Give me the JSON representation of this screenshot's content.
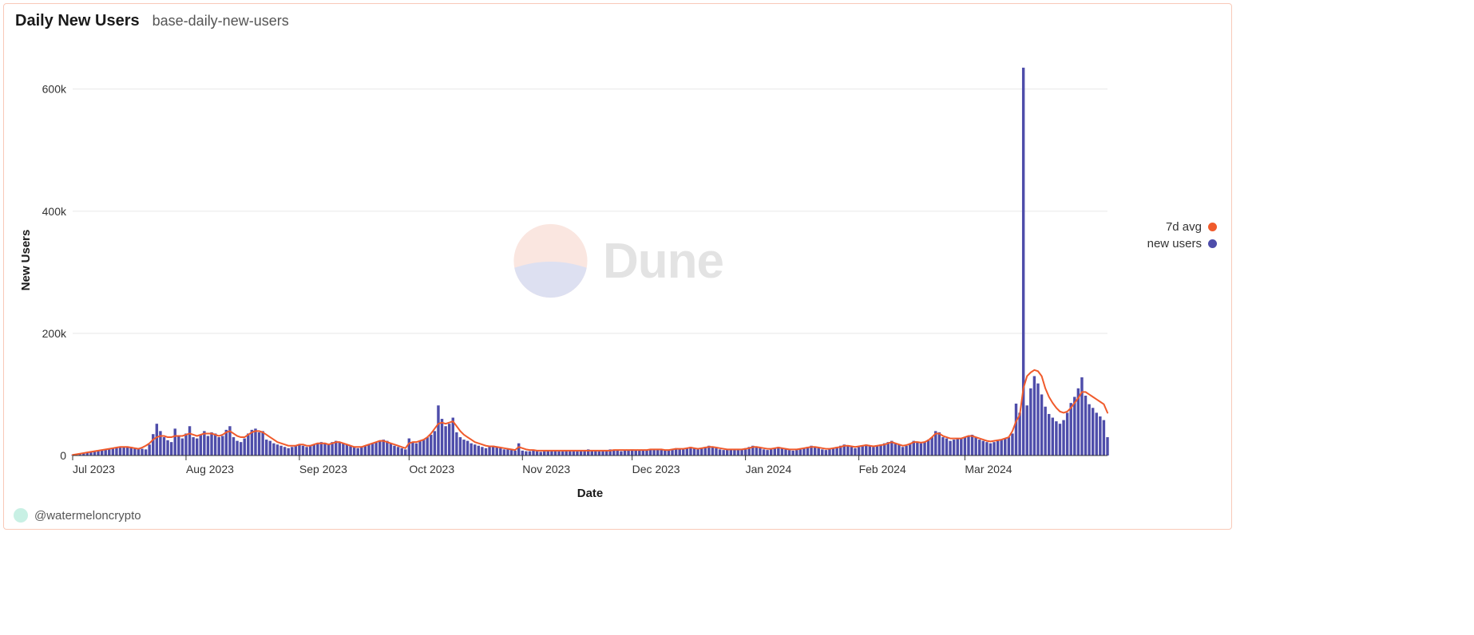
{
  "header": {
    "title": "Daily New Users",
    "subtitle": "base-daily-new-users"
  },
  "footer": {
    "author": "@watermeloncrypto",
    "avatar_color": "#c8f0e4"
  },
  "watermark": {
    "text": "Dune",
    "circle_top_color": "#f6c9bb",
    "circle_bottom_color": "#b6bbe2",
    "text_color": "#c3c3c3"
  },
  "legend": {
    "items": [
      {
        "label": "7d avg",
        "color": "#f05b2c"
      },
      {
        "label": "new users",
        "color": "#4e4daa"
      }
    ]
  },
  "chart": {
    "type": "bar+line",
    "background_color": "#ffffff",
    "grid_color": "#e8e8e8",
    "axis_color": "#333333",
    "bar_color": "#4e4daa",
    "line_color": "#f05b2c",
    "line_width": 2,
    "xlabel": "Date",
    "ylabel": "New Users",
    "ylim": [
      0,
      640000
    ],
    "yticks": [
      0,
      200000,
      400000,
      600000
    ],
    "ytick_labels": [
      "0",
      "200k",
      "400k",
      "600k"
    ],
    "xtick_labels": [
      "Jul 2023",
      "Aug 2023",
      "Sep 2023",
      "Oct 2023",
      "Nov 2023",
      "Dec 2023",
      "Jan 2024",
      "Feb 2024",
      "Mar 2024"
    ],
    "xtick_indices": [
      0,
      31,
      62,
      92,
      123,
      153,
      184,
      215,
      244
    ],
    "label_fontsize": 15,
    "tick_fontsize": 14,
    "bars": [
      1000,
      2000,
      3000,
      4000,
      5000,
      6000,
      7000,
      8000,
      9000,
      10000,
      11000,
      12000,
      13000,
      14000,
      15000,
      15000,
      14000,
      13000,
      12000,
      11000,
      10000,
      18000,
      35000,
      52000,
      40000,
      30000,
      25000,
      22000,
      44000,
      32000,
      28000,
      36000,
      48000,
      30000,
      28000,
      34000,
      40000,
      32000,
      38000,
      36000,
      30000,
      32000,
      42000,
      48000,
      30000,
      24000,
      22000,
      28000,
      36000,
      42000,
      44000,
      38000,
      40000,
      26000,
      24000,
      20000,
      18000,
      16000,
      14000,
      12000,
      14000,
      16000,
      18000,
      16000,
      14000,
      16000,
      18000,
      20000,
      22000,
      20000,
      18000,
      22000,
      24000,
      22000,
      20000,
      18000,
      16000,
      14000,
      12000,
      14000,
      16000,
      18000,
      20000,
      22000,
      24000,
      26000,
      24000,
      20000,
      16000,
      14000,
      12000,
      10000,
      28000,
      22000,
      20000,
      24000,
      26000,
      30000,
      34000,
      40000,
      82000,
      60000,
      48000,
      52000,
      62000,
      38000,
      30000,
      26000,
      24000,
      20000,
      18000,
      16000,
      14000,
      12000,
      14000,
      16000,
      14000,
      12000,
      10000,
      10000,
      9000,
      8000,
      20000,
      8000,
      7000,
      7000,
      8000,
      7000,
      6000,
      7000,
      8000,
      9000,
      8000,
      7000,
      7000,
      8000,
      9000,
      8000,
      7000,
      8000,
      9000,
      10000,
      9000,
      8000,
      7000,
      8000,
      9000,
      10000,
      9000,
      8000,
      7000,
      8000,
      9000,
      10000,
      9000,
      8000,
      8000,
      9000,
      10000,
      11000,
      10000,
      9000,
      8000,
      9000,
      10000,
      12000,
      11000,
      10000,
      12000,
      14000,
      12000,
      10000,
      12000,
      14000,
      16000,
      14000,
      12000,
      10000,
      9000,
      10000,
      11000,
      10000,
      9000,
      10000,
      12000,
      14000,
      16000,
      14000,
      12000,
      10000,
      9000,
      10000,
      12000,
      14000,
      12000,
      10000,
      9000,
      8000,
      9000,
      10000,
      12000,
      14000,
      16000,
      14000,
      12000,
      10000,
      9000,
      10000,
      12000,
      14000,
      16000,
      18000,
      16000,
      14000,
      12000,
      14000,
      16000,
      18000,
      16000,
      14000,
      16000,
      18000,
      20000,
      22000,
      24000,
      20000,
      18000,
      14000,
      16000,
      20000,
      24000,
      22000,
      20000,
      22000,
      26000,
      30000,
      40000,
      38000,
      30000,
      28000,
      24000,
      26000,
      28000,
      28000,
      30000,
      32000,
      34000,
      30000,
      26000,
      24000,
      22000,
      20000,
      22000,
      24000,
      26000,
      28000,
      30000,
      36000,
      85000,
      70000,
      635000,
      82000,
      110000,
      130000,
      118000,
      100000,
      80000,
      68000,
      62000,
      56000,
      52000,
      58000,
      70000,
      86000,
      96000,
      110000,
      128000,
      98000,
      84000,
      78000,
      70000,
      64000,
      58000,
      30000
    ],
    "line": [
      1000,
      2000,
      3000,
      4000,
      5000,
      6000,
      7000,
      8000,
      9000,
      10000,
      11000,
      12000,
      13000,
      14000,
      14000,
      14000,
      13000,
      12000,
      11000,
      13000,
      16000,
      20000,
      26000,
      30000,
      32000,
      32000,
      30000,
      30000,
      32000,
      32000,
      32000,
      34000,
      36000,
      34000,
      32000,
      34000,
      36000,
      36000,
      36000,
      34000,
      32000,
      34000,
      38000,
      40000,
      36000,
      32000,
      30000,
      30000,
      34000,
      38000,
      40000,
      40000,
      38000,
      34000,
      30000,
      26000,
      22000,
      20000,
      18000,
      16000,
      16000,
      16000,
      18000,
      18000,
      16000,
      16000,
      18000,
      20000,
      20000,
      20000,
      18000,
      20000,
      22000,
      22000,
      20000,
      18000,
      16000,
      14000,
      14000,
      14000,
      16000,
      18000,
      20000,
      22000,
      24000,
      24000,
      22000,
      20000,
      18000,
      16000,
      14000,
      12000,
      20000,
      22000,
      22000,
      24000,
      26000,
      30000,
      36000,
      44000,
      52000,
      54000,
      52000,
      54000,
      56000,
      48000,
      40000,
      34000,
      30000,
      26000,
      22000,
      20000,
      18000,
      16000,
      15000,
      15000,
      14000,
      13000,
      12000,
      11000,
      10000,
      9000,
      14000,
      12000,
      10000,
      9000,
      9000,
      8000,
      8000,
      8000,
      8000,
      8000,
      8000,
      8000,
      8000,
      8000,
      8000,
      8000,
      8000,
      8000,
      8000,
      8000,
      8000,
      8000,
      8000,
      8000,
      8000,
      8000,
      9000,
      9000,
      9000,
      9000,
      9000,
      9000,
      9000,
      9000,
      9000,
      9000,
      10000,
      10000,
      10000,
      10000,
      9000,
      9000,
      10000,
      11000,
      11000,
      11000,
      12000,
      13000,
      12000,
      11000,
      12000,
      13000,
      14000,
      14000,
      13000,
      12000,
      11000,
      10000,
      10000,
      10000,
      10000,
      10000,
      11000,
      12000,
      14000,
      14000,
      13000,
      12000,
      11000,
      11000,
      12000,
      13000,
      12000,
      11000,
      10000,
      10000,
      10000,
      11000,
      12000,
      13000,
      14000,
      14000,
      13000,
      12000,
      11000,
      11000,
      12000,
      13000,
      14000,
      16000,
      16000,
      15000,
      14000,
      15000,
      16000,
      17000,
      16000,
      15000,
      16000,
      17000,
      18000,
      20000,
      22000,
      20000,
      18000,
      16000,
      17000,
      19000,
      22000,
      22000,
      21000,
      22000,
      25000,
      30000,
      36000,
      36000,
      32000,
      30000,
      28000,
      28000,
      28000,
      28000,
      30000,
      32000,
      32000,
      30000,
      28000,
      26000,
      24000,
      23000,
      24000,
      25000,
      26000,
      28000,
      30000,
      40000,
      56000,
      66000,
      110000,
      130000,
      136000,
      140000,
      138000,
      130000,
      110000,
      96000,
      86000,
      78000,
      72000,
      70000,
      72000,
      78000,
      86000,
      94000,
      104000,
      104000,
      100000,
      96000,
      92000,
      88000,
      84000,
      70000
    ]
  }
}
